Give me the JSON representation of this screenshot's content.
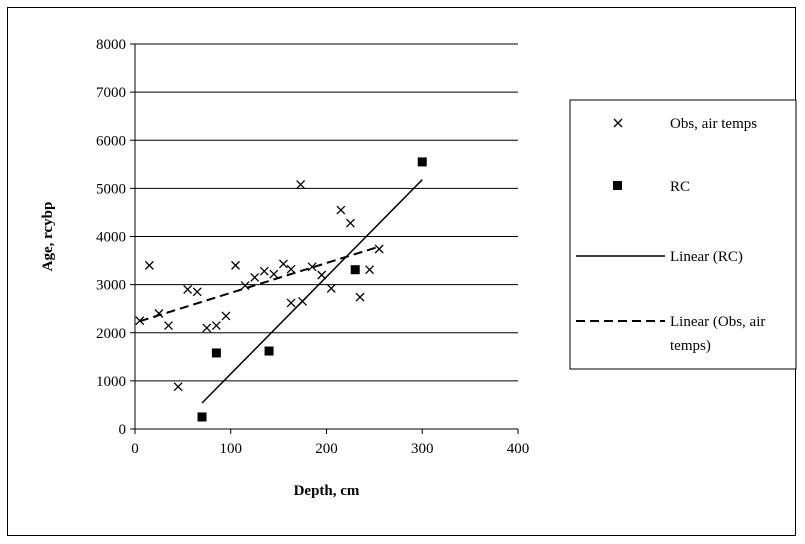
{
  "chart_data": {
    "type": "scatter",
    "title": "",
    "xlabel": "Depth, cm",
    "ylabel": "Age, rcybp",
    "xlim": [
      0,
      400
    ],
    "ylim": [
      0,
      8000
    ],
    "x_ticks": [
      0,
      100,
      200,
      300,
      400
    ],
    "y_ticks": [
      0,
      1000,
      2000,
      3000,
      4000,
      5000,
      6000,
      7000,
      8000
    ],
    "grid": "horizontal",
    "legend_position": "right",
    "series": [
      {
        "name": "Obs, air temps",
        "marker": "x",
        "color": "#000000",
        "points": [
          [
            5,
            2250
          ],
          [
            15,
            3400
          ],
          [
            25,
            2400
          ],
          [
            35,
            2150
          ],
          [
            45,
            880
          ],
          [
            55,
            2900
          ],
          [
            65,
            2850
          ],
          [
            75,
            2100
          ],
          [
            85,
            2150
          ],
          [
            95,
            2350
          ],
          [
            105,
            3400
          ],
          [
            115,
            2980
          ],
          [
            125,
            3150
          ],
          [
            135,
            3280
          ],
          [
            145,
            3220
          ],
          [
            155,
            3430
          ],
          [
            163,
            3320
          ],
          [
            163,
            2620
          ],
          [
            173,
            5080
          ],
          [
            175,
            2650
          ],
          [
            185,
            3370
          ],
          [
            195,
            3200
          ],
          [
            205,
            2920
          ],
          [
            215,
            4550
          ],
          [
            225,
            4280
          ],
          [
            235,
            2740
          ],
          [
            245,
            3310
          ],
          [
            255,
            3740
          ]
        ]
      },
      {
        "name": "RC",
        "marker": "square",
        "color": "#000000",
        "points": [
          [
            70,
            250
          ],
          [
            85,
            1580
          ],
          [
            140,
            1620
          ],
          [
            230,
            3310
          ],
          [
            300,
            5550
          ]
        ]
      },
      {
        "name": "Linear (RC)",
        "style": "solid",
        "color": "#000000",
        "points": [
          [
            70,
            540
          ],
          [
            300,
            5180
          ]
        ]
      },
      {
        "name": "Linear (Obs, air temps)",
        "style": "dashed",
        "color": "#000000",
        "points": [
          [
            5,
            2240
          ],
          [
            255,
            3790
          ]
        ]
      }
    ]
  }
}
